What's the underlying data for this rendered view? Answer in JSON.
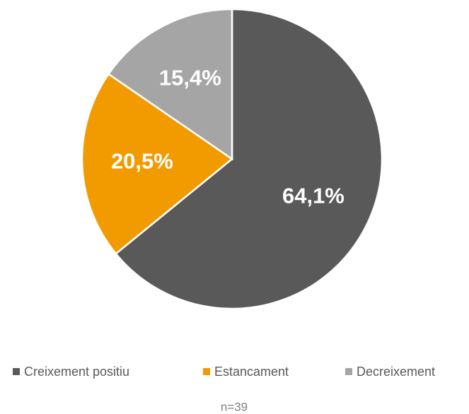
{
  "chart_data": {
    "type": "pie",
    "categories": [
      "Creixement positiu",
      "Estancament",
      "Decreixement"
    ],
    "values": [
      64.1,
      20.5,
      15.4
    ],
    "value_labels": [
      "64,1%",
      "20,5%",
      "15,4%"
    ],
    "colors": [
      "#595959",
      "#f29b00",
      "#a5a5a5"
    ],
    "legend": "bottom",
    "annotation": "n=39"
  }
}
